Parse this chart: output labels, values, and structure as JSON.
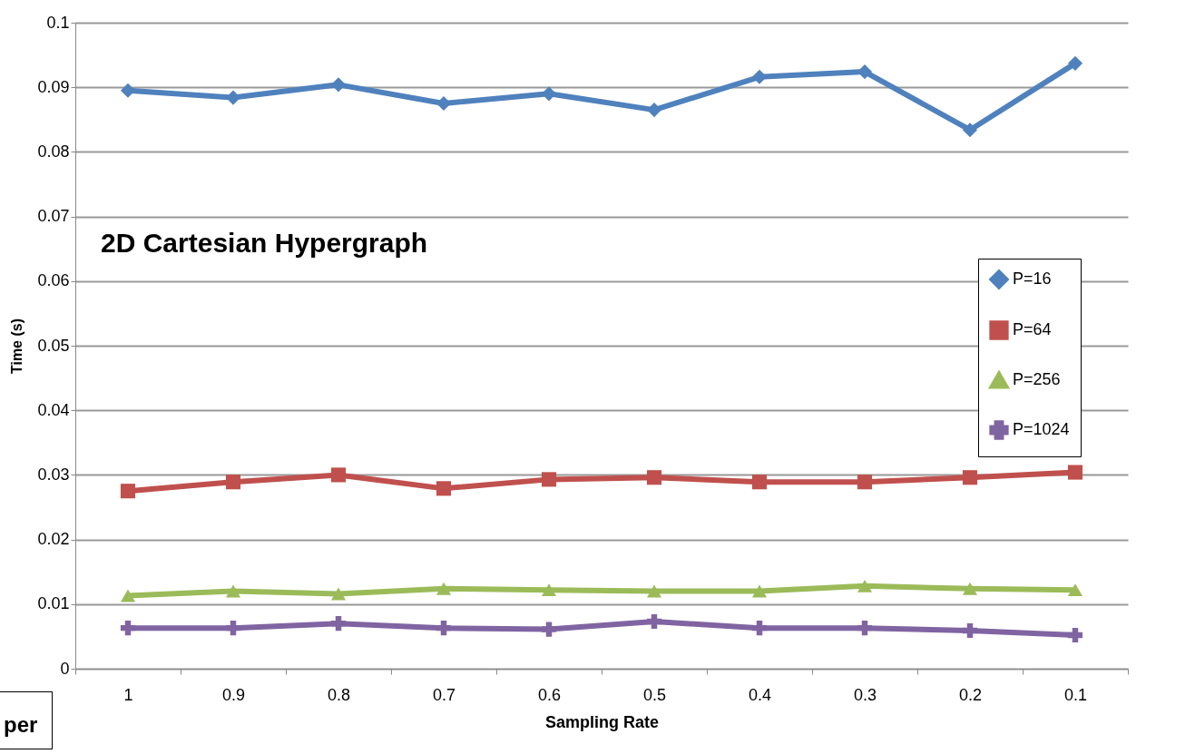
{
  "chart_data": {
    "type": "line",
    "title": "2D Cartesian Hypergraph",
    "xlabel": "Sampling Rate",
    "ylabel": "Time (s)",
    "categories": [
      "1",
      "0.9",
      "0.8",
      "0.7",
      "0.6",
      "0.5",
      "0.4",
      "0.3",
      "0.2",
      "0.1"
    ],
    "series": [
      {
        "name": "P=16",
        "color": "#4f81bd",
        "marker": "diamond",
        "values": [
          0.0895,
          0.0884,
          0.0904,
          0.0875,
          0.089,
          0.0865,
          0.0916,
          0.0924,
          0.0834,
          0.0937
        ]
      },
      {
        "name": "P=64",
        "color": "#c0504d",
        "marker": "square",
        "values": [
          0.0275,
          0.0289,
          0.03,
          0.0279,
          0.0293,
          0.0296,
          0.0289,
          0.0289,
          0.0296,
          0.0304
        ]
      },
      {
        "name": "P=256",
        "color": "#9bbb59",
        "marker": "triangle",
        "values": [
          0.0113,
          0.012,
          0.0116,
          0.0124,
          0.0122,
          0.012,
          0.012,
          0.0128,
          0.0124,
          0.0122
        ]
      },
      {
        "name": "P=1024",
        "color": "#8064a2",
        "marker": "cross",
        "values": [
          0.0063,
          0.0063,
          0.007,
          0.0063,
          0.0061,
          0.0073,
          0.0063,
          0.0063,
          0.0059,
          0.0052
        ]
      }
    ],
    "ylim": [
      0,
      0.1
    ],
    "yticks": [
      0,
      0.01,
      0.02,
      0.03,
      0.04,
      0.05,
      0.06,
      0.07,
      0.08,
      0.09,
      0.1
    ],
    "grid": "y",
    "legend": "right",
    "annotations": [
      "per"
    ]
  }
}
